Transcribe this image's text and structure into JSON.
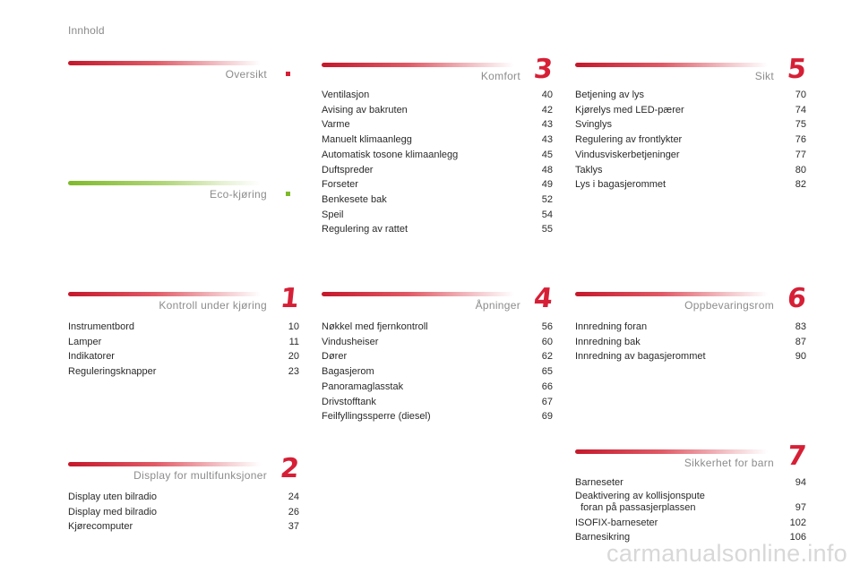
{
  "page_label": "Innhold",
  "watermark": "carmanualsonline.info",
  "colors": {
    "accent_red": "#d61f36",
    "accent_green": "#7fba2a"
  },
  "sections": {
    "oversikt": {
      "title": "Oversikt",
      "items": []
    },
    "eco": {
      "title": "Eco-kjøring",
      "items": []
    },
    "kontroll": {
      "title": "Kontroll under kjøring",
      "number": "1",
      "items": [
        {
          "label": "Instrumentbord",
          "page": "10"
        },
        {
          "label": "Lamper",
          "page": "11"
        },
        {
          "label": "Indikatorer",
          "page": "20"
        },
        {
          "label": "Reguleringsknapper",
          "page": "23"
        }
      ]
    },
    "display": {
      "title": "Display for multifunksjoner",
      "number": "2",
      "items": [
        {
          "label": "Display uten bilradio",
          "page": "24"
        },
        {
          "label": "Display med bilradio",
          "page": "26"
        },
        {
          "label": "Kjørecomputer",
          "page": "37"
        }
      ]
    },
    "komfort": {
      "title": "Komfort",
      "number": "3",
      "items": [
        {
          "label": "Ventilasjon",
          "page": "40"
        },
        {
          "label": "Avising av bakruten",
          "page": "42"
        },
        {
          "label": "Varme",
          "page": "43"
        },
        {
          "label": "Manuelt klimaanlegg",
          "page": "43"
        },
        {
          "label": "Automatisk tosone klimaanlegg",
          "page": "45"
        },
        {
          "label": "Duftspreder",
          "page": "48"
        },
        {
          "label": "Forseter",
          "page": "49"
        },
        {
          "label": "Benkesete bak",
          "page": "52"
        },
        {
          "label": "Speil",
          "page": "54"
        },
        {
          "label": "Regulering av rattet",
          "page": "55"
        }
      ]
    },
    "apninger": {
      "title": "Åpninger",
      "number": "4",
      "items": [
        {
          "label": "Nøkkel med fjernkontroll",
          "page": "56"
        },
        {
          "label": "Vindusheiser",
          "page": "60"
        },
        {
          "label": "Dører",
          "page": "62"
        },
        {
          "label": "Bagasjerom",
          "page": "65"
        },
        {
          "label": "Panoramaglasstak",
          "page": "66"
        },
        {
          "label": "Drivstofftank",
          "page": "67"
        },
        {
          "label": "Feilfyllingssperre (diesel)",
          "page": "69"
        }
      ]
    },
    "sikt": {
      "title": "Sikt",
      "number": "5",
      "items": [
        {
          "label": "Betjening av lys",
          "page": "70"
        },
        {
          "label": "Kjørelys med LED-pærer",
          "page": "74"
        },
        {
          "label": "Svinglys",
          "page": "75"
        },
        {
          "label": "Regulering av frontlykter",
          "page": "76"
        },
        {
          "label": "Vindusviskerbetjeninger",
          "page": "77"
        },
        {
          "label": "Taklys",
          "page": "80"
        },
        {
          "label": "Lys i bagasjerommet",
          "page": "82"
        }
      ]
    },
    "oppbevaring": {
      "title": "Oppbevaringsrom",
      "number": "6",
      "items": [
        {
          "label": "Innredning foran",
          "page": "83"
        },
        {
          "label": "Innredning bak",
          "page": "87"
        },
        {
          "label": "Innredning av bagasjerommet",
          "page": "90"
        }
      ]
    },
    "sikkerhet": {
      "title": "Sikkerhet for barn",
      "number": "7",
      "items": [
        {
          "label": "Barneseter",
          "page": "94"
        },
        {
          "label": "Deaktivering av kollisjonspute\n  foran på passasjerplassen",
          "page": "97"
        },
        {
          "label": "ISOFIX-barneseter",
          "page": "102"
        },
        {
          "label": "Barnesikring",
          "page": "106"
        }
      ]
    }
  }
}
